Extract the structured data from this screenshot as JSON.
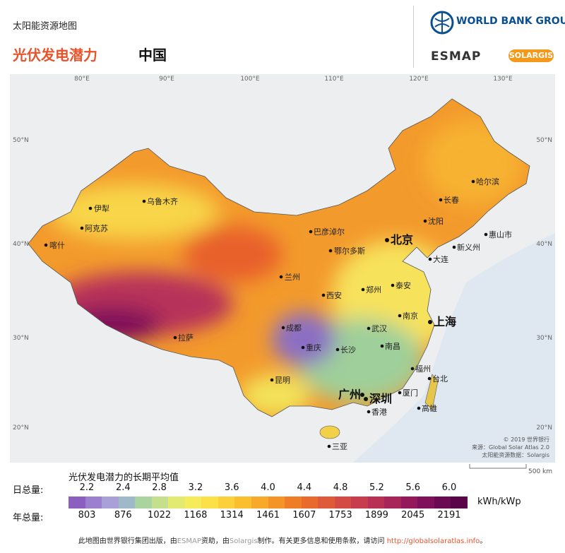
{
  "header": {
    "subtitle": "太阳能资源地图",
    "title": "光伏发电潜力",
    "region": "中国",
    "logo_world_bank": "WORLD BANK GROUP",
    "logo_esmap": "ESMAP",
    "logo_solargis": "SOLARGIS"
  },
  "map": {
    "longitudes": [
      "80°E",
      "90°E",
      "100°E",
      "110°E",
      "120°E",
      "130°E"
    ],
    "latitudes": [
      "50°N",
      "40°N",
      "30°N",
      "20°N"
    ],
    "cities": [
      "伊犁",
      "乌鲁木齐",
      "阿克苏",
      "喀什",
      "拉萨",
      "兰州",
      "巴彦淖尔",
      "鄂尔多斯",
      "北京",
      "哈尔滨",
      "长春",
      "沈阳",
      "惠山市",
      "新义州",
      "大连",
      "西安",
      "郑州",
      "泰安",
      "成都",
      "重庆",
      "武汉",
      "南京",
      "上海",
      "长沙",
      "南昌",
      "昆明",
      "福州",
      "台北",
      "广州",
      "深圳",
      "厦门",
      "香港",
      "高雄",
      "三亚"
    ],
    "credits": [
      "© 2019 世界银行",
      "来源：Global Solar Atlas 2.0",
      "太阳能资源数据：Solargis"
    ],
    "scale": "500 km"
  },
  "legend": {
    "title": "光伏发电潜力的长期平均值",
    "daily_label": "日总量:",
    "annual_label": "年总量:",
    "unit": "kWh/kWp",
    "daily": [
      "2.2",
      "2.4",
      "2.8",
      "3.2",
      "3.6",
      "4.0",
      "4.4",
      "4.8",
      "5.2",
      "5.6",
      "6.0"
    ],
    "annual": [
      "803",
      "876",
      "1022",
      "1168",
      "1314",
      "1461",
      "1607",
      "1753",
      "1899",
      "2045",
      "2191"
    ],
    "colors": [
      "#8b5fbf",
      "#9d7fd0",
      "#a9a0d8",
      "#9fb9c8",
      "#a9d4a0",
      "#c5e08c",
      "#e3ea72",
      "#f6ec5b",
      "#fbe047",
      "#fcd03a",
      "#fbbf2e",
      "#f9a929",
      "#f49327",
      "#ef7d28",
      "#e86a2c",
      "#df5a38",
      "#d44b44",
      "#c83d4e",
      "#b93055",
      "#a8255a",
      "#94195c",
      "#7e115a",
      "#6a0a52",
      "#5a0549"
    ]
  },
  "footer": {
    "text1": "此地图由世界银行集团出版，由",
    "esmap": "ESMAP",
    "text2": "资助，由",
    "solargis": "Solargis",
    "text3": "制作。有关更多信息和使用条款，请访问 ",
    "link": "http://globalsolaratlas.info",
    "text4": "。"
  }
}
